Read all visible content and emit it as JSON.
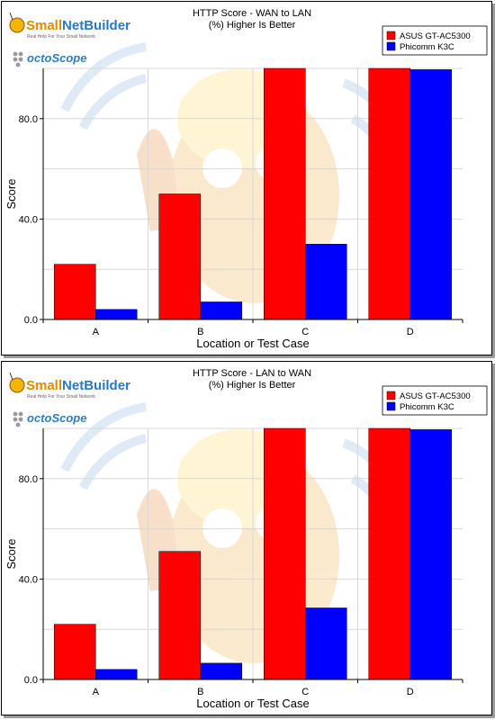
{
  "logo": {
    "brand_small": "Small",
    "brand_net": "Net",
    "brand_builder": "Builder",
    "tagline": "Real Help For Your Small Network",
    "partner": "octoScope"
  },
  "chart_data": [
    {
      "type": "bar",
      "title": "HTTP Score - WAN to LAN",
      "subtitle": "(%) Higher Is Better",
      "xlabel": "Location or Test Case",
      "ylabel": "Score",
      "categories": [
        "A",
        "B",
        "C",
        "D"
      ],
      "ylim": [
        0,
        100
      ],
      "yticks": [
        0,
        40,
        80
      ],
      "ytick_labels": [
        "0.0",
        "40.0",
        "80.0"
      ],
      "grid": true,
      "legend_position": "top-right",
      "series": [
        {
          "name": "ASUS GT-AC5300",
          "color": "#ff0000",
          "values": [
            22,
            50,
            100,
            100
          ]
        },
        {
          "name": "Phicomm K3C",
          "color": "#0000ff",
          "values": [
            4,
            7,
            30,
            99.5
          ]
        }
      ]
    },
    {
      "type": "bar",
      "title": "HTTP Score - LAN to WAN",
      "subtitle": "(%) Higher Is Better",
      "xlabel": "Location or Test Case",
      "ylabel": "Score",
      "categories": [
        "A",
        "B",
        "C",
        "D"
      ],
      "ylim": [
        0,
        100
      ],
      "yticks": [
        0,
        40,
        80
      ],
      "ytick_labels": [
        "0.0",
        "40.0",
        "80.0"
      ],
      "grid": true,
      "legend_position": "top-right",
      "series": [
        {
          "name": "ASUS GT-AC5300",
          "color": "#ff0000",
          "values": [
            22,
            51,
            100,
            100
          ]
        },
        {
          "name": "Phicomm K3C",
          "color": "#0000ff",
          "values": [
            4,
            6.5,
            28.5,
            99.5
          ]
        }
      ]
    }
  ]
}
